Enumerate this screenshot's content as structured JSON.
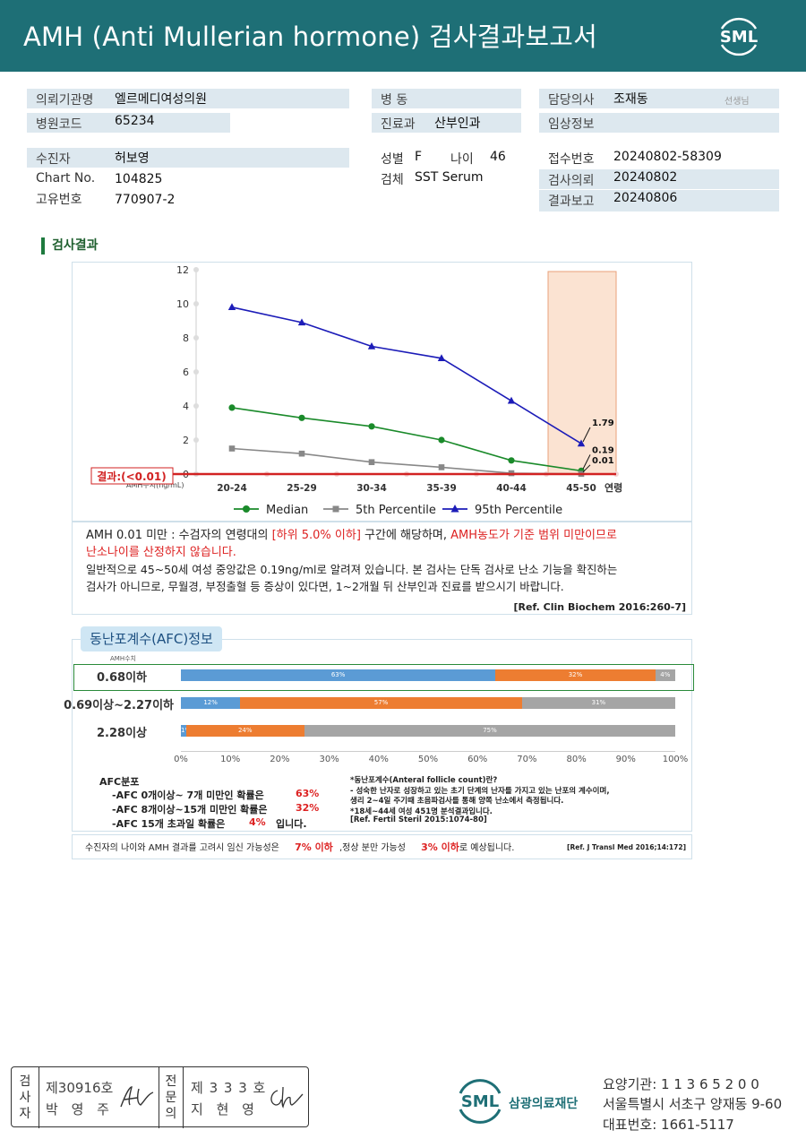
{
  "header": {
    "title": "AMH (Anti Mullerian hormone) 검사결과보고서",
    "logo_text": "SML"
  },
  "info": {
    "institution_label": "의뢰기관명",
    "institution_value": "엘르메디여성의원",
    "hospital_code_label": "병원코드",
    "hospital_code_value": "65234",
    "ward_label": "병 동",
    "ward_value": "",
    "dept_label": "진료과",
    "dept_value": "산부인과",
    "doctor_label": "담당의사",
    "doctor_value": "조재동",
    "doctor_suffix": "선생님",
    "clinical_label": "임상정보",
    "clinical_value": "",
    "patient_label": "수진자",
    "patient_value": "허보영",
    "chart_label": "Chart No.",
    "chart_value": "104825",
    "uid_label": "고유번호",
    "uid_value": "770907-2",
    "sex_label": "성별",
    "sex_value": "F",
    "age_label": "나이",
    "age_value": "46",
    "specimen_label": "검체",
    "specimen_value": "SST Serum",
    "reception_label": "접수번호",
    "reception_value": "20240802-58309",
    "request_label": "검사의뢰",
    "request_value": "20240802",
    "report_label": "결과보고",
    "report_value": "20240806"
  },
  "section_title": "검사결과",
  "chart_data": {
    "type": "line",
    "categories": [
      "20-24",
      "25-29",
      "30-34",
      "35-39",
      "40-44",
      "45-50"
    ],
    "x_axis_suffix": "연령",
    "ylabel": "AMH수치(ng/mL)",
    "ylim": [
      0,
      12
    ],
    "yticks": [
      "0",
      "2",
      "4",
      "6",
      "8",
      "10",
      "12"
    ],
    "series": [
      {
        "name": "Median",
        "color": "#1a8a2a",
        "marker": "circle",
        "values": [
          3.9,
          3.3,
          2.8,
          2.0,
          0.8,
          0.19
        ]
      },
      {
        "name": "5th Percentile",
        "color": "#888888",
        "marker": "square",
        "values": [
          1.5,
          1.2,
          0.7,
          0.4,
          0.05,
          0.01
        ]
      },
      {
        "name": "95th Percentile",
        "color": "#1c1cb8",
        "marker": "triangle",
        "values": [
          9.8,
          8.9,
          7.5,
          6.8,
          4.3,
          1.79
        ]
      }
    ],
    "point_labels": [
      "1.79",
      "0.19",
      "0.01"
    ],
    "result_label": "결과:(<0.01)",
    "result_color": "#d22222",
    "highlight_category": "45-50",
    "highlight_color": "#fbe3d2"
  },
  "note": {
    "line1_a": "AMH  0.01 미만 : 수검자의 연령대의 ",
    "line1_b": "[하위 5.0% 이하]",
    "line1_c": " 구간에 해당하며, ",
    "line1_d": "AMH농도가 기준 범위 미만이므로",
    "line2": "난소나이를 산정하지 않습니다.",
    "line3": "일반적으로 45~50세 여성 중앙값은 0.19ng/ml로 알려져 있습니다. 본 검사는 단독 검사로 난소 기능을 확진하는",
    "line4": "검사가 아니므로, 무월경, 부정출혈 등 증상이 있다면, 1~2개월 뒤 산부인과 진료를 받으시기 바랍니다.",
    "ref": "[Ref. Clin Biochem 2016:260-7]"
  },
  "afc": {
    "tab_title": "동난포계수(AFC)정보",
    "amh_caption": "AMH수치",
    "rows": [
      {
        "label": "0.68이하",
        "segments": [
          63,
          32,
          4
        ],
        "texts": [
          "63%",
          "32%",
          "4%"
        ]
      },
      {
        "label": "0.69이상~2.27이하",
        "segments": [
          12,
          57,
          31
        ],
        "texts": [
          "12%",
          "57%",
          "31%"
        ]
      },
      {
        "label": "2.28이상",
        "segments": [
          1,
          24,
          75
        ],
        "texts": [
          "1%",
          "24%",
          "75%"
        ]
      }
    ],
    "segment_colors": [
      "#5b9bd5",
      "#ed7d31",
      "#a5a5a5"
    ],
    "axis_ticks": [
      "0%",
      "10%",
      "20%",
      "30%",
      "40%",
      "50%",
      "60%",
      "70%",
      "80%",
      "90%",
      "100%"
    ],
    "dist_title": "AFC분포",
    "dist_lines": [
      {
        "text": "-AFC  0개이상~ 7개 미만인 확률은",
        "pct": "63%",
        "tail": ""
      },
      {
        "text": "-AFC  8개이상~15개 미만인 확률은",
        "pct": "32%",
        "tail": ""
      },
      {
        "text": "-AFC  15개 초과일 확률은",
        "pct": "4%",
        "tail": "입니다."
      }
    ],
    "def_lines": [
      "*동난포계수(Anteral  follicle  count)란?",
      "- 성숙한 난자로 성장하고 있는 초기 단계의 난자를 가지고 있는 난포의 계수이며,",
      "  생리 2~4일 주기때 초음파검사를 통해 양쪽 난소에서 측정됩니다.",
      "*18세~44세 여성 451명 분석결과입니다.",
      "[Ref. Fertil Steril 2015:1074-80]"
    ]
  },
  "final": {
    "a": "수진자의  나이와 AMH 결과를 고려시 임신 가능성은",
    "b": "7% 이하",
    "c": ",정상 분만 가능성",
    "d": "3% 이하",
    "e": "로 예상됩니다.",
    "ref": "[Ref. J Transl Med 2016;14:172]"
  },
  "footer": {
    "exam_vertical": "검사자",
    "exam_no": "제30916호",
    "exam_name": "박 영 주",
    "spec_vertical": "전문의",
    "spec_no": "제 3 3 3 호",
    "spec_name": "지 현 영",
    "org_name": "삼광의료재단",
    "org_logo": "SML",
    "institution_code": "요양기관: 1 1 3 6 5 2 0 0",
    "address": "서울특별시 서초구 양재동 9-60",
    "phone": "대표번호: 1661-5117"
  }
}
